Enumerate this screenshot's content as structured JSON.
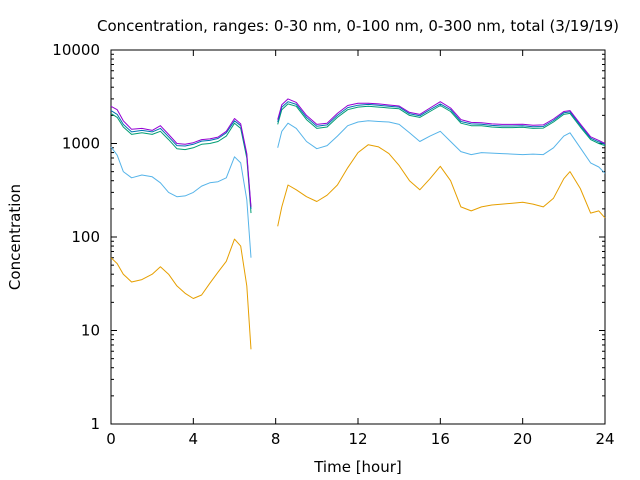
{
  "chart_data": {
    "type": "line",
    "title": "Concentration, ranges: 0-30 nm, 0-100 nm, 0-300 nm, total (3/19/19)",
    "xlabel": "Time [hour]",
    "ylabel": "Concentration",
    "xlim": [
      0,
      24
    ],
    "ylim": [
      1,
      10000
    ],
    "yscale": "log",
    "grid": false,
    "legend": "none",
    "xticks": [
      0,
      4,
      8,
      12,
      16,
      20,
      24
    ],
    "xtick_labels": [
      "0",
      "4",
      "8",
      "12",
      "16",
      "20",
      "24"
    ],
    "yticks": [
      1,
      10,
      100,
      1000,
      10000
    ],
    "ytick_labels": [
      "1",
      "10",
      "100",
      "1000",
      "10000"
    ],
    "series": [
      {
        "color": "#e69f00",
        "x": [
          0,
          0.3,
          0.6,
          1.0,
          1.5,
          2.0,
          2.4,
          2.8,
          3.2,
          3.6,
          4.0,
          4.4,
          4.8,
          5.2,
          5.6,
          6.0,
          6.3,
          6.6,
          6.8,
          null,
          8.1,
          8.3,
          8.6,
          9.0,
          9.5,
          10.0,
          10.5,
          11.0,
          11.5,
          12.0,
          12.5,
          13.0,
          13.5,
          14.0,
          14.5,
          15.0,
          15.5,
          16.0,
          16.5,
          17.0,
          17.5,
          18.0,
          18.5,
          19.0,
          19.5,
          20.0,
          20.5,
          21.0,
          21.5,
          22.0,
          22.3,
          22.8,
          23.3,
          23.7,
          24.0
        ],
        "y": [
          60,
          52,
          40,
          33,
          35,
          40,
          48,
          40,
          30,
          25,
          22,
          24,
          32,
          42,
          55,
          95,
          80,
          30,
          6.3,
          null,
          130,
          210,
          360,
          320,
          270,
          240,
          280,
          360,
          550,
          800,
          970,
          920,
          780,
          580,
          400,
          320,
          420,
          570,
          400,
          210,
          190,
          210,
          220,
          225,
          230,
          235,
          225,
          210,
          260,
          420,
          500,
          330,
          180,
          190,
          160
        ]
      },
      {
        "color": "#56b4e9",
        "x": [
          0,
          0.3,
          0.6,
          1.0,
          1.5,
          2.0,
          2.4,
          2.8,
          3.2,
          3.6,
          4.0,
          4.4,
          4.8,
          5.2,
          5.6,
          6.0,
          6.3,
          6.6,
          6.8,
          null,
          8.1,
          8.3,
          8.6,
          9.0,
          9.5,
          10.0,
          10.5,
          11.0,
          11.5,
          12.0,
          12.5,
          13.0,
          13.5,
          14.0,
          14.5,
          15.0,
          15.5,
          16.0,
          16.5,
          17.0,
          17.5,
          18.0,
          18.5,
          19.0,
          19.5,
          20.0,
          20.5,
          21.0,
          21.5,
          22.0,
          22.3,
          22.8,
          23.3,
          23.7,
          24.0
        ],
        "y": [
          920,
          750,
          500,
          430,
          460,
          440,
          380,
          300,
          270,
          275,
          300,
          350,
          380,
          390,
          430,
          720,
          620,
          250,
          60,
          null,
          900,
          1350,
          1650,
          1450,
          1050,
          880,
          950,
          1200,
          1550,
          1700,
          1750,
          1720,
          1700,
          1600,
          1300,
          1050,
          1200,
          1350,
          1050,
          820,
          760,
          800,
          790,
          780,
          770,
          760,
          770,
          760,
          900,
          1200,
          1300,
          900,
          620,
          560,
          480
        ]
      },
      {
        "color": "#009e73",
        "x": [
          0,
          0.3,
          0.6,
          1.0,
          1.5,
          2.0,
          2.4,
          2.8,
          3.2,
          3.6,
          4.0,
          4.4,
          4.8,
          5.2,
          5.6,
          6.0,
          6.3,
          6.6,
          6.8,
          null,
          8.1,
          8.3,
          8.6,
          9.0,
          9.5,
          10.0,
          10.5,
          11.0,
          11.5,
          12.0,
          12.5,
          13.0,
          13.5,
          14.0,
          14.5,
          15.0,
          15.5,
          16.0,
          16.5,
          17.0,
          17.5,
          18.0,
          18.5,
          19.0,
          19.5,
          20.0,
          20.5,
          21.0,
          21.5,
          22.0,
          22.3,
          22.8,
          23.3,
          23.7,
          24.0
        ],
        "y": [
          2100,
          1900,
          1500,
          1250,
          1300,
          1250,
          1350,
          1100,
          880,
          860,
          900,
          980,
          1000,
          1050,
          1200,
          1650,
          1450,
          700,
          180,
          null,
          1600,
          2300,
          2650,
          2500,
          1800,
          1450,
          1500,
          1900,
          2300,
          2450,
          2500,
          2450,
          2400,
          2350,
          2000,
          1900,
          2200,
          2550,
          2200,
          1650,
          1550,
          1550,
          1500,
          1480,
          1480,
          1490,
          1450,
          1460,
          1700,
          2050,
          2100,
          1500,
          1100,
          1000,
          950
        ]
      },
      {
        "color": "#0072b2",
        "x": [
          0,
          0.3,
          0.6,
          1.0,
          1.5,
          2.0,
          2.4,
          2.8,
          3.2,
          3.6,
          4.0,
          4.4,
          4.8,
          5.2,
          5.6,
          6.0,
          6.3,
          6.6,
          6.8,
          null,
          8.1,
          8.3,
          8.6,
          9.0,
          9.5,
          10.0,
          10.5,
          11.0,
          11.5,
          12.0,
          12.5,
          13.0,
          13.5,
          14.0,
          14.5,
          15.0,
          15.5,
          16.0,
          16.5,
          17.0,
          17.5,
          18.0,
          18.5,
          19.0,
          19.5,
          20.0,
          20.5,
          21.0,
          21.5,
          22.0,
          22.3,
          22.8,
          23.3,
          23.7,
          24.0
        ],
        "y": [
          2250,
          2050,
          1600,
          1330,
          1380,
          1330,
          1450,
          1180,
          950,
          940,
          980,
          1060,
          1080,
          1130,
          1300,
          1750,
          1550,
          750,
          200,
          null,
          1700,
          2450,
          2800,
          2620,
          1900,
          1530,
          1580,
          2000,
          2420,
          2570,
          2620,
          2560,
          2500,
          2450,
          2080,
          1980,
          2300,
          2650,
          2300,
          1720,
          1620,
          1610,
          1560,
          1540,
          1540,
          1550,
          1510,
          1520,
          1760,
          2130,
          2180,
          1560,
          1140,
          1040,
          980
        ]
      },
      {
        "color": "#9400d3",
        "x": [
          0,
          0.3,
          0.6,
          1.0,
          1.5,
          2.0,
          2.4,
          2.8,
          3.2,
          3.6,
          4.0,
          4.4,
          4.8,
          5.2,
          5.6,
          6.0,
          6.3,
          6.6,
          6.8,
          null,
          8.1,
          8.3,
          8.6,
          9.0,
          9.5,
          10.0,
          10.5,
          11.0,
          11.5,
          12.0,
          12.5,
          13.0,
          13.5,
          14.0,
          14.5,
          15.0,
          15.5,
          16.0,
          16.5,
          17.0,
          17.5,
          18.0,
          18.5,
          19.0,
          19.5,
          20.0,
          20.5,
          21.0,
          21.5,
          22.0,
          22.3,
          22.8,
          23.3,
          23.7,
          24.0
        ],
        "y": [
          2500,
          2300,
          1750,
          1420,
          1450,
          1380,
          1550,
          1250,
          1000,
          980,
          1020,
          1100,
          1120,
          1170,
          1350,
          1850,
          1620,
          780,
          210,
          null,
          1800,
          2600,
          3000,
          2750,
          2000,
          1600,
          1650,
          2100,
          2550,
          2700,
          2700,
          2650,
          2580,
          2520,
          2150,
          2050,
          2400,
          2800,
          2400,
          1800,
          1680,
          1670,
          1620,
          1600,
          1600,
          1610,
          1570,
          1580,
          1830,
          2200,
          2250,
          1620,
          1180,
          1080,
          1000
        ]
      }
    ]
  }
}
